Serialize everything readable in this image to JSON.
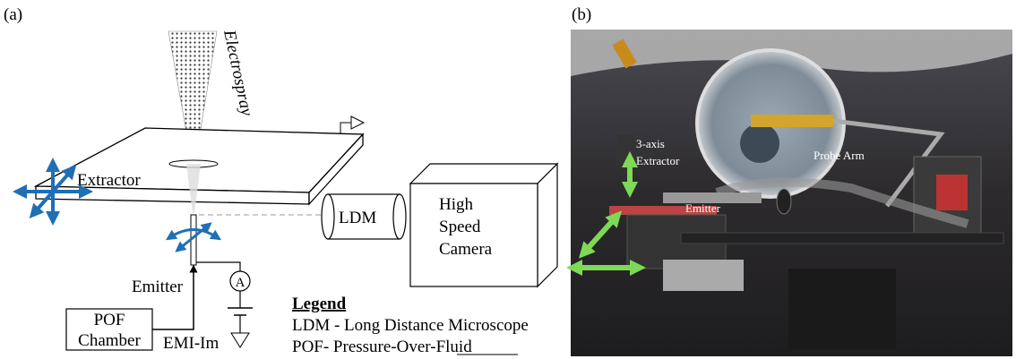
{
  "panel_a": {
    "label": "(a)",
    "electrospray": "Electrospray",
    "extractor": "Extractor",
    "ldm": "LDM",
    "camera": [
      "High",
      "Speed",
      "Camera"
    ],
    "emitter": "Emitter",
    "ammeter": "A",
    "pof_chamber": [
      "POF",
      "Chamber"
    ],
    "liquid": "EMI-Im",
    "legend": {
      "title": "Legend",
      "entries": [
        "LDM - Long Distance Microscope",
        "POF- Pressure-Over-Fluid"
      ]
    }
  },
  "panel_b": {
    "label": "(b)",
    "labels": {
      "extractor": [
        "3-axis",
        "Extractor"
      ],
      "probe_arm": "Probe Arm",
      "emitter": "Emitter"
    }
  }
}
